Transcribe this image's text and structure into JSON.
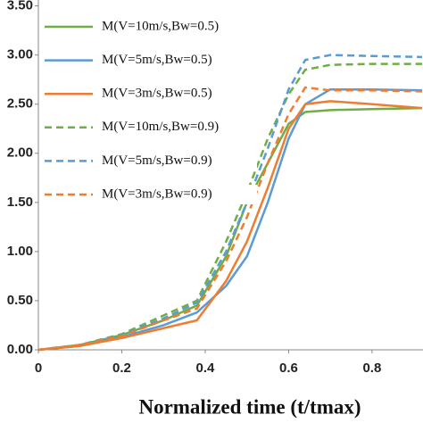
{
  "chart_data": {
    "type": "line",
    "xlabel": "Normalized time (t/tmax)",
    "x": [
      0,
      0.1,
      0.2,
      0.3,
      0.38,
      0.45,
      0.5,
      0.55,
      0.6,
      0.64,
      0.7,
      0.8,
      0.92
    ],
    "series": [
      {
        "name": "M(V=10m/s,Bw=0.5)",
        "color": "#70ad47",
        "dash": false,
        "values": [
          0,
          0.05,
          0.15,
          0.3,
          0.45,
          0.95,
          1.5,
          1.9,
          2.3,
          2.42,
          2.44,
          2.45,
          2.46
        ]
      },
      {
        "name": "M(V=5m/s,Bw=0.5)",
        "color": "#5b9bd5",
        "dash": false,
        "values": [
          0,
          0.04,
          0.13,
          0.25,
          0.38,
          0.65,
          0.95,
          1.5,
          2.15,
          2.5,
          2.65,
          2.65,
          2.64
        ]
      },
      {
        "name": "M(V=3m/s,Bw=0.5)",
        "color": "#ed7d31",
        "dash": false,
        "values": [
          0,
          0.04,
          0.12,
          0.22,
          0.3,
          0.7,
          1.1,
          1.65,
          2.25,
          2.5,
          2.53,
          2.5,
          2.46
        ]
      },
      {
        "name": "M(V=10m/s,Bw=0.9)",
        "color": "#70ad47",
        "dash": true,
        "values": [
          0,
          0.05,
          0.16,
          0.35,
          0.5,
          1.1,
          1.6,
          2.15,
          2.6,
          2.85,
          2.9,
          2.91,
          2.91
        ]
      },
      {
        "name": "M(V=5m/s,Bw=0.9)",
        "color": "#5b9bd5",
        "dash": true,
        "values": [
          0,
          0.05,
          0.15,
          0.32,
          0.48,
          1.0,
          1.5,
          2.05,
          2.65,
          2.95,
          3.0,
          2.99,
          2.98
        ]
      },
      {
        "name": "M(V=3m/s,Bw=0.9)",
        "color": "#ed7d31",
        "dash": true,
        "values": [
          0,
          0.05,
          0.14,
          0.3,
          0.42,
          0.9,
          1.35,
          1.9,
          2.4,
          2.67,
          2.64,
          2.64,
          2.63
        ]
      }
    ],
    "xlim": [
      0,
      0.92
    ],
    "xticks": [
      0,
      0.2,
      0.4,
      0.6,
      0.8
    ],
    "ylim": [
      0,
      3.56
    ],
    "yticks": [
      {
        "value": 0,
        "label": "0.00"
      },
      {
        "value": 0.5,
        "label": "0.50"
      },
      {
        "value": 1,
        "label": "1.00"
      },
      {
        "value": 1.5,
        "label": "1.50"
      },
      {
        "value": 2,
        "label": "2.00"
      },
      {
        "value": 2.5,
        "label": "2.50"
      },
      {
        "value": 3,
        "label": "3.00"
      },
      {
        "value": 3.5,
        "label": "3.50"
      }
    ],
    "legend": "upper left"
  }
}
